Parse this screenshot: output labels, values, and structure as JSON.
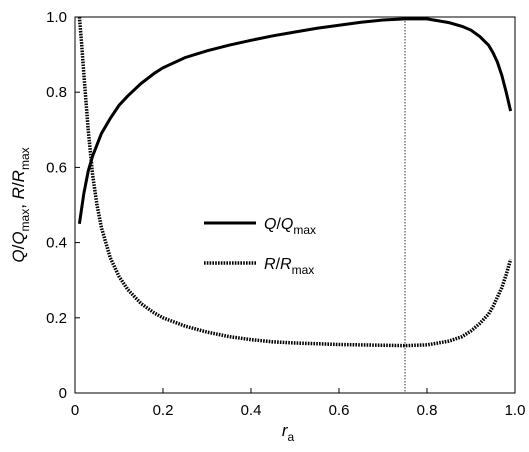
{
  "chart_data": {
    "type": "line",
    "title": "",
    "xlabel": {
      "main": "r",
      "sub": "a"
    },
    "ylabel": "Q/Q_max, R/R_max",
    "xlim": [
      0,
      1
    ],
    "ylim": [
      0,
      1
    ],
    "x_ticks": [
      "0",
      "0.2",
      "0.4",
      "0.6",
      "0.8",
      "1.0"
    ],
    "y_ticks": [
      "0",
      "0.2",
      "0.4",
      "0.6",
      "0.8",
      "1.0"
    ],
    "grid": false,
    "legend_position": "center",
    "reference_line_x": 0.75,
    "series": [
      {
        "name": "Q/Qmax",
        "label_main": "Q/Q",
        "label_sub": "max",
        "style": "solid",
        "color": "#000000",
        "x": [
          0.01,
          0.02,
          0.03,
          0.04,
          0.05,
          0.06,
          0.08,
          0.1,
          0.12,
          0.15,
          0.18,
          0.2,
          0.25,
          0.3,
          0.35,
          0.4,
          0.45,
          0.5,
          0.55,
          0.6,
          0.65,
          0.7,
          0.75,
          0.8,
          0.85,
          0.88,
          0.9,
          0.92,
          0.94,
          0.95,
          0.96,
          0.97,
          0.98,
          0.99
        ],
        "y": [
          0.45,
          0.53,
          0.59,
          0.63,
          0.66,
          0.69,
          0.73,
          0.765,
          0.79,
          0.823,
          0.85,
          0.865,
          0.892,
          0.91,
          0.925,
          0.938,
          0.95,
          0.96,
          0.97,
          0.978,
          0.986,
          0.992,
          0.995,
          0.995,
          0.985,
          0.975,
          0.965,
          0.948,
          0.925,
          0.905,
          0.88,
          0.845,
          0.8,
          0.75
        ]
      },
      {
        "name": "R/Rmax",
        "label_main": "R/R",
        "label_sub": "max",
        "style": "dotted",
        "color": "#000000",
        "x": [
          0.01,
          0.015,
          0.02,
          0.03,
          0.04,
          0.05,
          0.06,
          0.08,
          0.1,
          0.12,
          0.15,
          0.18,
          0.2,
          0.25,
          0.3,
          0.35,
          0.4,
          0.45,
          0.5,
          0.55,
          0.6,
          0.65,
          0.7,
          0.75,
          0.8,
          0.85,
          0.88,
          0.9,
          0.92,
          0.94,
          0.95,
          0.96,
          0.97,
          0.98,
          0.99
        ],
        "y": [
          1.0,
          0.93,
          0.85,
          0.7,
          0.58,
          0.5,
          0.44,
          0.36,
          0.31,
          0.275,
          0.238,
          0.213,
          0.2,
          0.178,
          0.162,
          0.15,
          0.142,
          0.136,
          0.133,
          0.131,
          0.129,
          0.128,
          0.127,
          0.126,
          0.128,
          0.138,
          0.15,
          0.165,
          0.185,
          0.21,
          0.23,
          0.255,
          0.28,
          0.315,
          0.355
        ]
      }
    ]
  }
}
